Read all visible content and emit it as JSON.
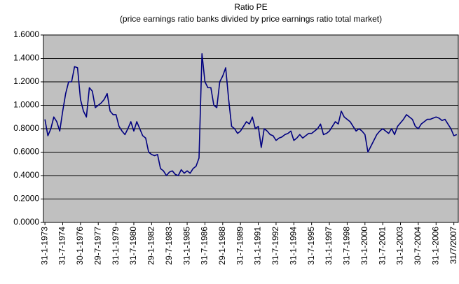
{
  "chart_data": {
    "type": "line",
    "title": "Ratio PE",
    "subtitle": "(price earnings ratio banks divided by price earnings ratio total market)",
    "categories": [
      "31-1-1973",
      null,
      null,
      null,
      null,
      null,
      "31-7-1974",
      null,
      null,
      null,
      null,
      null,
      "30-1-1976",
      null,
      null,
      null,
      null,
      null,
      "29-7-1977",
      null,
      null,
      null,
      null,
      null,
      "31-1-1979",
      null,
      null,
      null,
      null,
      null,
      "31-7-1980",
      null,
      null,
      null,
      null,
      null,
      "29-1-1982",
      null,
      null,
      null,
      null,
      null,
      "29-7-1983",
      null,
      null,
      null,
      null,
      null,
      "31-1-1985",
      null,
      null,
      null,
      null,
      null,
      "31-7-1986",
      null,
      null,
      null,
      null,
      null,
      "29-1-1988",
      null,
      null,
      null,
      null,
      null,
      "31-7-1989",
      null,
      null,
      null,
      null,
      null,
      "31-1-1991",
      null,
      null,
      null,
      null,
      null,
      "31-7-1992",
      null,
      null,
      null,
      null,
      null,
      "31-1-1994",
      null,
      null,
      null,
      null,
      null,
      "31-7-1995",
      null,
      null,
      null,
      null,
      null,
      "31-1-1997",
      null,
      null,
      null,
      null,
      null,
      "31-7-1998",
      null,
      null,
      null,
      null,
      null,
      "31-1-2000",
      null,
      null,
      null,
      null,
      null,
      "31-7-2001",
      null,
      null,
      null,
      null,
      null,
      "31-1-2003",
      null,
      null,
      null,
      null,
      null,
      "30-7-2004",
      null,
      null,
      null,
      null,
      null,
      "31-1-2006",
      null,
      null,
      null,
      null,
      null,
      "31/7/2007",
      null
    ],
    "values": [
      0.88,
      0.74,
      0.8,
      0.9,
      0.86,
      0.78,
      0.95,
      1.1,
      1.2,
      1.2,
      1.33,
      1.32,
      1.05,
      0.95,
      0.9,
      1.15,
      1.12,
      0.98,
      1.0,
      1.02,
      1.05,
      1.1,
      0.95,
      0.92,
      0.92,
      0.82,
      0.78,
      0.75,
      0.8,
      0.86,
      0.78,
      0.86,
      0.8,
      0.74,
      0.72,
      0.6,
      0.58,
      0.57,
      0.58,
      0.46,
      0.44,
      0.4,
      0.43,
      0.44,
      0.41,
      0.4,
      0.45,
      0.42,
      0.44,
      0.42,
      0.46,
      0.48,
      0.55,
      1.44,
      1.2,
      1.15,
      1.15,
      1.0,
      0.98,
      1.2,
      1.25,
      1.32,
      1.05,
      0.82,
      0.8,
      0.76,
      0.78,
      0.82,
      0.86,
      0.84,
      0.9,
      0.8,
      0.82,
      0.64,
      0.8,
      0.78,
      0.75,
      0.74,
      0.7,
      0.72,
      0.73,
      0.75,
      0.76,
      0.78,
      0.7,
      0.72,
      0.75,
      0.72,
      0.74,
      0.76,
      0.76,
      0.78,
      0.8,
      0.84,
      0.75,
      0.76,
      0.78,
      0.82,
      0.86,
      0.84,
      0.95,
      0.9,
      0.88,
      0.86,
      0.82,
      0.78,
      0.8,
      0.78,
      0.75,
      0.6,
      0.65,
      0.7,
      0.75,
      0.78,
      0.8,
      0.78,
      0.76,
      0.8,
      0.75,
      0.82,
      0.85,
      0.88,
      0.92,
      0.9,
      0.88,
      0.82,
      0.8,
      0.84,
      0.86,
      0.88,
      0.88,
      0.89,
      0.9,
      0.89,
      0.87,
      0.88,
      0.84,
      0.8,
      0.74,
      0.75
    ],
    "color": "#000080",
    "ylim": [
      0,
      1.6
    ],
    "yticks": [
      {
        "value": 0,
        "label": "0.0000"
      },
      {
        "value": 0.2,
        "label": "0.2000"
      },
      {
        "value": 0.4,
        "label": "0.4000"
      },
      {
        "value": 0.6,
        "label": "0.6000"
      },
      {
        "value": 0.8,
        "label": "0.8000"
      },
      {
        "value": 1.0,
        "label": "1.0000"
      },
      {
        "value": 1.2,
        "label": "1.2000"
      },
      {
        "value": 1.4,
        "label": "1.4000"
      },
      {
        "value": 1.6,
        "label": "1.6000"
      }
    ],
    "grid": true
  }
}
